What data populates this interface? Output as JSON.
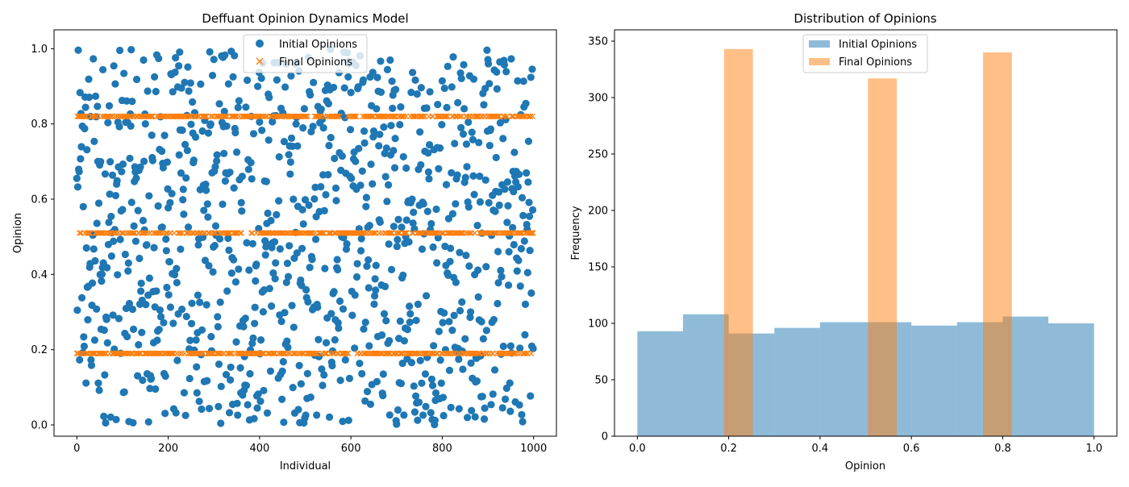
{
  "chart_data": [
    {
      "type": "scatter",
      "title": "Deffuant Opinion Dynamics Model",
      "xlabel": "Individual",
      "ylabel": "Opinion",
      "xlim": [
        -50,
        1050
      ],
      "ylim": [
        -0.03,
        1.05
      ],
      "xticks": [
        0,
        200,
        400,
        600,
        800,
        1000
      ],
      "xtick_labels": [
        "0",
        "200",
        "400",
        "600",
        "800",
        "1000"
      ],
      "yticks": [
        0.0,
        0.2,
        0.4,
        0.6,
        0.8,
        1.0
      ],
      "ytick_labels": [
        "0.0",
        "0.2",
        "0.4",
        "0.6",
        "0.8",
        "1.0"
      ],
      "grid": false,
      "legend_location": "upper center",
      "series": [
        {
          "name": "Initial Opinions",
          "marker": "circle",
          "color": "#1f77b4",
          "distribution": "uniform",
          "n_points": 1000,
          "x_range": [
            0,
            999
          ],
          "y_range": [
            0.0,
            1.0
          ]
        },
        {
          "name": "Final Opinions",
          "marker": "x",
          "color": "#ff7f0e",
          "n_points": 1000,
          "x_range": [
            0,
            999
          ],
          "clusters": [
            {
              "opinion": 0.19,
              "count": 343
            },
            {
              "opinion": 0.51,
              "count": 317
            },
            {
              "opinion": 0.82,
              "count": 340
            }
          ]
        }
      ]
    },
    {
      "type": "histogram",
      "title": "Distribution of Opinions",
      "xlabel": "Opinion",
      "ylabel": "Frequency",
      "xlim": [
        -0.05,
        1.05
      ],
      "ylim": [
        0,
        360
      ],
      "xticks": [
        0.0,
        0.2,
        0.4,
        0.6,
        0.8,
        1.0
      ],
      "xtick_labels": [
        "0.0",
        "0.2",
        "0.4",
        "0.6",
        "0.8",
        "1.0"
      ],
      "yticks": [
        0,
        50,
        100,
        150,
        200,
        250,
        300,
        350
      ],
      "ytick_labels": [
        "0",
        "50",
        "100",
        "150",
        "200",
        "250",
        "300",
        "350"
      ],
      "grid": false,
      "legend_location": "upper center",
      "series": [
        {
          "name": "Initial Opinions",
          "color": "#1f77b4",
          "alpha": 0.5,
          "bin_edges": [
            0.0,
            0.1,
            0.2,
            0.3,
            0.4,
            0.5,
            0.6,
            0.7,
            0.8,
            0.9,
            1.0
          ],
          "counts": [
            93,
            108,
            91,
            96,
            101,
            101,
            98,
            101,
            106,
            100
          ]
        },
        {
          "name": "Final Opinions",
          "color": "#ff7f0e",
          "alpha": 0.5,
          "bin_edges": [
            0.19,
            0.253,
            0.316,
            0.379,
            0.442,
            0.505,
            0.568,
            0.631,
            0.694,
            0.757,
            0.82
          ],
          "counts": [
            343,
            0,
            0,
            0,
            0,
            317,
            0,
            0,
            0,
            340
          ]
        }
      ]
    }
  ]
}
